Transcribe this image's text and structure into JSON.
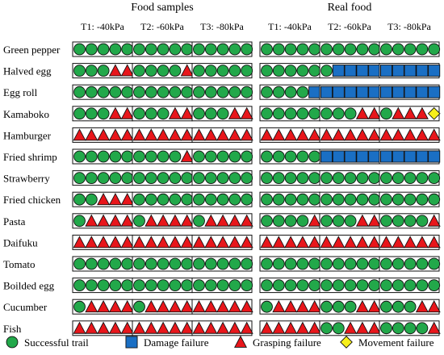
{
  "groups": [
    {
      "label": "Food samples",
      "conditions": [
        "T1: -40kPa",
        "T2: -60kPa",
        "T3: -80kPa"
      ]
    },
    {
      "label": "Real food",
      "conditions": [
        "T1: -40kPa",
        "T2: -60kPa",
        "T3: -80kPa"
      ]
    }
  ],
  "outcome_codes": {
    "S": "success",
    "D": "damage",
    "G": "grasp",
    "M": "movement"
  },
  "rows": [
    {
      "food": "Green pepper",
      "samples": [
        "SSSSS",
        "SSSSS",
        "SSSSS"
      ],
      "real": [
        "SSSSS",
        "SSSSS",
        "SSSSS"
      ]
    },
    {
      "food": "Halved egg",
      "samples": [
        "SSSGG",
        "SSSSG",
        "SSSSS"
      ],
      "real": [
        "SSSSS",
        "SDDDD",
        "DDDDD"
      ]
    },
    {
      "food": "Egg roll",
      "samples": [
        "SSSSS",
        "SSSSS",
        "SSSSS"
      ],
      "real": [
        "SSSSD",
        "DDDDD",
        "DDDDD"
      ]
    },
    {
      "food": "Kamaboko",
      "samples": [
        "SSSGG",
        "SSSGG",
        "SSSGG"
      ],
      "real": [
        "SSSSS",
        "SSSGG",
        "SGGGM"
      ]
    },
    {
      "food": "Hamburger",
      "samples": [
        "GGGGG",
        "GGGGG",
        "GGGGG"
      ],
      "real": [
        "GGGGG",
        "GGGGG",
        "GGGGG"
      ]
    },
    {
      "food": "Fried shrimp",
      "samples": [
        "SSSSS",
        "SSSSG",
        "SSSSS"
      ],
      "real": [
        "SSSSS",
        "DDDDD",
        "DDDDD"
      ]
    },
    {
      "food": "Strawberry",
      "samples": [
        "SSSSS",
        "SSSSS",
        "SSSSS"
      ],
      "real": [
        "SSSSS",
        "SSSSS",
        "SSSSS"
      ]
    },
    {
      "food": "Fried chicken",
      "samples": [
        "SSGGG",
        "SSSSS",
        "SSSSS"
      ],
      "real": [
        "SSSSS",
        "SSSSS",
        "SSSSS"
      ]
    },
    {
      "food": "Pasta",
      "samples": [
        "SGGGG",
        "SGGGG",
        "SGGGG"
      ],
      "real": [
        "SSSSG",
        "SSSGG",
        "SSSSG"
      ]
    },
    {
      "food": "Daifuku",
      "samples": [
        "GGGGG",
        "GGGGG",
        "GGGGG"
      ],
      "real": [
        "GGGGG",
        "GGGGG",
        "GGGGG"
      ]
    },
    {
      "food": "Tomato",
      "samples": [
        "SSSSS",
        "SSSSS",
        "SSSSS"
      ],
      "real": [
        "SSSSS",
        "SSSSS",
        "SSSSS"
      ]
    },
    {
      "food": "Boilded egg",
      "samples": [
        "SSSSS",
        "SSSSS",
        "SSSSS"
      ],
      "real": [
        "SSSSS",
        "SSSSS",
        "SSSSS"
      ]
    },
    {
      "food": "Cucumber",
      "samples": [
        "SGGGG",
        "SGGGG",
        "GGGGG"
      ],
      "real": [
        "SGGGG",
        "SSSGG",
        "SSSGG"
      ]
    },
    {
      "food": "Fish",
      "samples": [
        "GGGGG",
        "GGGGG",
        "GGGGG"
      ],
      "real": [
        "GGGGG",
        "SSGGG",
        "SSSSG"
      ]
    }
  ],
  "legend": [
    {
      "code": "S",
      "shape": "circle",
      "color": "#22a84a",
      "label": "Successful trail"
    },
    {
      "code": "D",
      "shape": "square",
      "color": "#1a6fc4",
      "label": "Damage failure"
    },
    {
      "code": "G",
      "shape": "triangle",
      "color": "#e8161b",
      "label": "Grasping failure"
    },
    {
      "code": "M",
      "shape": "diamond",
      "color": "#f7ef1a",
      "label": "Movement failure"
    }
  ]
}
